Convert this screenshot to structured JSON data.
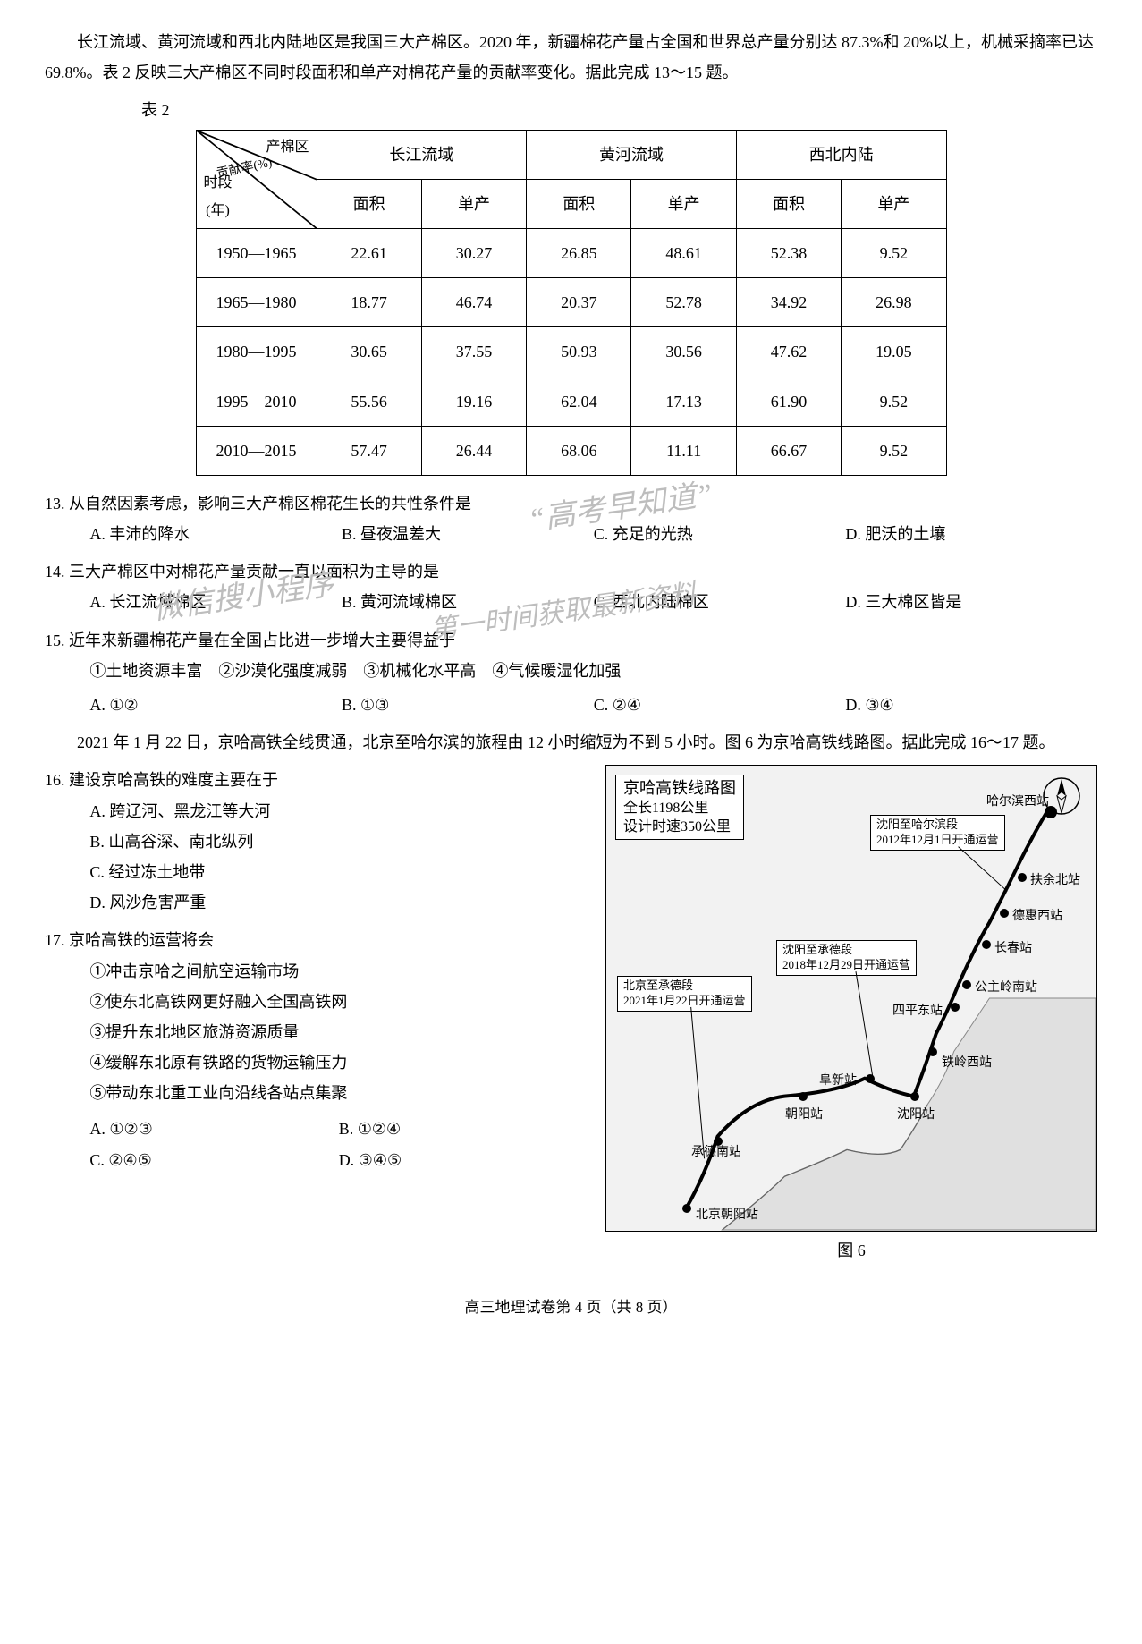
{
  "passage1": "长江流域、黄河流域和西北内陆地区是我国三大产棉区。2020 年，新疆棉花产量占全国和世界总产量分别达 87.3%和 20%以上，机械采摘率已达 69.8%。表 2 反映三大产棉区不同时段面积和单产对棉花产量的贡献率变化。据此完成 13～15 题。",
  "table": {
    "label": "表 2",
    "diag_top": "产棉区",
    "diag_mid": "贡献率(%)",
    "diag_bot": "时段\n(年)",
    "regions": [
      "长江流域",
      "黄河流域",
      "西北内陆"
    ],
    "sub_headers": [
      "面积",
      "单产"
    ],
    "row_labels": [
      "1950—1965",
      "1965—1980",
      "1980—1995",
      "1995—2010",
      "2010—2015"
    ],
    "grid": [
      [
        "22.61",
        "30.27",
        "26.85",
        "48.61",
        "52.38",
        "9.52"
      ],
      [
        "18.77",
        "46.74",
        "20.37",
        "52.78",
        "34.92",
        "26.98"
      ],
      [
        "30.65",
        "37.55",
        "50.93",
        "30.56",
        "47.62",
        "19.05"
      ],
      [
        "55.56",
        "19.16",
        "62.04",
        "17.13",
        "61.90",
        "9.52"
      ],
      [
        "57.47",
        "26.44",
        "68.06",
        "11.11",
        "66.67",
        "9.52"
      ]
    ]
  },
  "q13": {
    "text": "13. 从自然因素考虑，影响三大产棉区棉花生长的共性条件是",
    "opts": {
      "A": "A. 丰沛的降水",
      "B": "B. 昼夜温差大",
      "C": "C. 充足的光热",
      "D": "D. 肥沃的土壤"
    }
  },
  "q14": {
    "text": "14. 三大产棉区中对棉花产量贡献一直以面积为主导的是",
    "opts": {
      "A": "A. 长江流域棉区",
      "B": "B. 黄河流域棉区",
      "C": "C. 西北内陆棉区",
      "D": "D. 三大棉区皆是"
    }
  },
  "q15": {
    "text": "15. 近年来新疆棉花产量在全国占比进一步增大主要得益于",
    "items": "①土地资源丰富　②沙漠化强度减弱　③机械化水平高　④气候暖湿化加强",
    "opts": {
      "A": "A. ①②",
      "B": "B. ①③",
      "C": "C. ②④",
      "D": "D. ③④"
    }
  },
  "passage2": "2021 年 1 月 22 日，京哈高铁全线贯通，北京至哈尔滨的旅程由 12 小时缩短为不到 5 小时。图 6 为京哈高铁线路图。据此完成 16～17 题。",
  "q16": {
    "text": "16. 建设京哈高铁的难度主要在于",
    "opts": {
      "A": "A. 跨辽河、黑龙江等大河",
      "B": "B. 山高谷深、南北纵列",
      "C": "C. 经过冻土地带",
      "D": "D. 风沙危害严重"
    }
  },
  "q17": {
    "text": "17. 京哈高铁的运营将会",
    "items": [
      "①冲击京哈之间航空运输市场",
      "②使东北高铁网更好融入全国高铁网",
      "③提升东北地区旅游资源质量",
      "④缓解东北原有铁路的货物运输压力",
      "⑤带动东北重工业向沿线各站点集聚"
    ],
    "opts": {
      "A": "A. ①②③",
      "B": "B. ①②④",
      "C": "C. ②④⑤",
      "D": "D. ③④⑤"
    }
  },
  "map": {
    "title": "京哈高铁线路图",
    "sub1": "全长1198公里",
    "sub2": "设计时速350公里",
    "box1": {
      "l1": "北京至承德段",
      "l2": "2021年1月22日开通运营"
    },
    "box2": {
      "l1": "沈阳至承德段",
      "l2": "2018年12月29日开通运营"
    },
    "box3": {
      "l1": "沈阳至哈尔滨段",
      "l2": "2012年12月1日开通运营"
    },
    "stations": {
      "bj": "北京朝阳站",
      "cd": "承德南站",
      "cy": "朝阳站",
      "fx": "阜新站",
      "sy": "沈阳站",
      "tl": "铁岭西站",
      "sp": "四平东站",
      "gzl": "公主岭南站",
      "cc": "长春站",
      "dh": "德惠西站",
      "fy": "扶余北站",
      "hrb": "哈尔滨西站"
    },
    "caption": "图 6"
  },
  "watermarks": {
    "w1": "“高考早知道”",
    "w2": "微信搜小程序",
    "w3": "第一时间获取最新资料"
  },
  "footer": "高三地理试卷第 4 页（共 8 页）"
}
